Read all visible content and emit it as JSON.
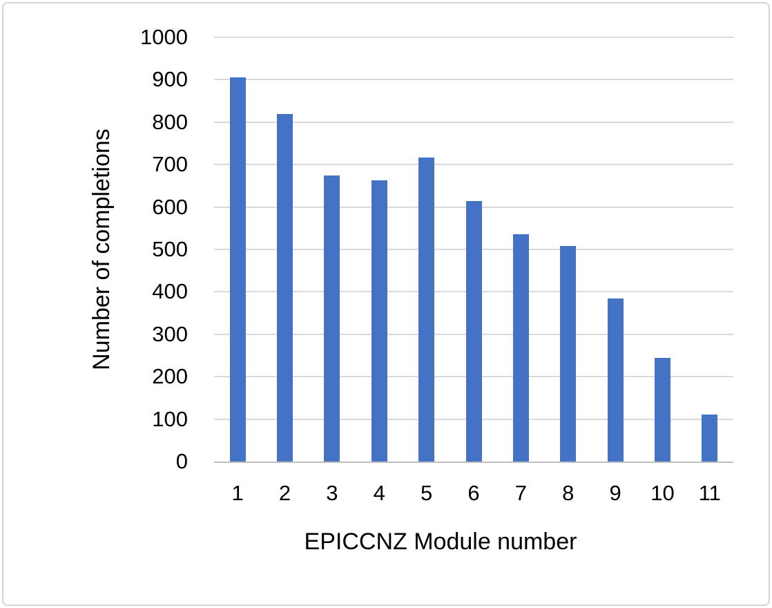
{
  "chart_data": {
    "type": "bar",
    "title": "",
    "categories": [
      "1",
      "2",
      "3",
      "4",
      "5",
      "6",
      "7",
      "8",
      "9",
      "10",
      "11"
    ],
    "values": [
      905,
      820,
      675,
      663,
      717,
      614,
      536,
      508,
      384,
      245,
      110
    ],
    "xlabel": "EPICCNZ Module number",
    "ylabel": "Number of completions",
    "ylim": [
      0,
      1000
    ],
    "ytick_step": 100,
    "ytick_labels": [
      "0",
      "100",
      "200",
      "300",
      "400",
      "500",
      "600",
      "700",
      "800",
      "900",
      "1000"
    ],
    "legend": "none",
    "grid": "horizontal",
    "bar_color": "#4472C4",
    "gridline_color": "#D9D9D9",
    "axis_line_color": "#BFBFBF",
    "text_color": "#000000",
    "border_color": "#D2D2D2"
  }
}
